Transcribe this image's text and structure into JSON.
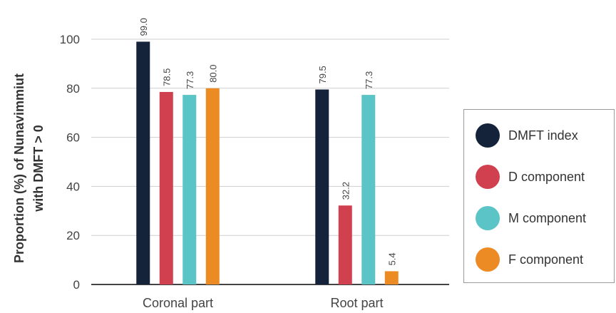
{
  "chart_data": {
    "type": "bar",
    "categories": [
      "Coronal part",
      "Root part"
    ],
    "series": [
      {
        "name": "DMFT index",
        "values": [
          99.0,
          79.5
        ],
        "labels": [
          "99.0",
          "79.5"
        ],
        "color": "#14233a"
      },
      {
        "name": "D component",
        "values": [
          78.5,
          32.2
        ],
        "labels": [
          "78.5",
          "32.2"
        ],
        "color": "#d0404e"
      },
      {
        "name": "M component",
        "values": [
          77.3,
          77.3
        ],
        "labels": [
          "77.3",
          "77.3"
        ],
        "color": "#5ac4c6"
      },
      {
        "name": "F component",
        "values": [
          80.0,
          5.4
        ],
        "labels": [
          "80.0",
          "5.4"
        ],
        "color": "#ec8a24"
      }
    ],
    "ylabel_line1": "Proportion (%) of Nunavimmiut",
    "ylabel_line2": "with DMFT > 0",
    "ylim": [
      0,
      100
    ],
    "yticks": [
      "0",
      "20",
      "40",
      "60",
      "80",
      "100"
    ],
    "grid": true,
    "legend_position": "right"
  }
}
